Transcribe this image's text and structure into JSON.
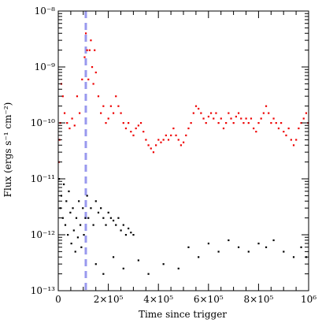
{
  "chart_data": {
    "type": "scatter",
    "title": "",
    "xlabel": "Time since trigger",
    "ylabel": "Flux (ergs s⁻¹ cm⁻²)",
    "xlim": [
      0,
      1000000
    ],
    "ylim": [
      1e-13,
      1e-08
    ],
    "yscale": "log",
    "grid": false,
    "legend": "none",
    "x_ticks": [
      {
        "value": 0,
        "label": "0"
      },
      {
        "value": 200000,
        "label": "2×10⁵"
      },
      {
        "value": 400000,
        "label": "4×10⁵"
      },
      {
        "value": 600000,
        "label": "6×10⁵"
      },
      {
        "value": 800000,
        "label": "8×10⁵"
      },
      {
        "value": 1000000,
        "label": "10⁶"
      }
    ],
    "y_ticks": [
      {
        "value": 1e-13,
        "label": "10⁻¹³"
      },
      {
        "value": 1e-12,
        "label": "10⁻¹²"
      },
      {
        "value": 1e-11,
        "label": "10⁻¹¹"
      },
      {
        "value": 1e-10,
        "label": "10⁻¹⁰"
      },
      {
        "value": 1e-09,
        "label": "10⁻⁹"
      },
      {
        "value": 1e-08,
        "label": "10⁻⁸"
      }
    ],
    "vertical_lines": [
      {
        "x": 110000,
        "style": "dashed",
        "color": "#9999ee"
      }
    ],
    "series": [
      {
        "color": "#ee0000",
        "points": [
          [
            2000,
            2e-11
          ],
          [
            5000,
            5e-11
          ],
          [
            8000,
            1e-10
          ],
          [
            12000,
            5e-10
          ],
          [
            18000,
            3e-10
          ],
          [
            25000,
            1.5e-10
          ],
          [
            35000,
            1e-10
          ],
          [
            45000,
            8e-11
          ],
          [
            55000,
            1.2e-10
          ],
          [
            65000,
            9e-11
          ],
          [
            75000,
            3e-10
          ],
          [
            85000,
            1.5e-10
          ],
          [
            95000,
            6e-10
          ],
          [
            105000,
            1.5e-09
          ],
          [
            110000,
            4e-09
          ],
          [
            115000,
            2e-09
          ],
          [
            120000,
            6e-10
          ],
          [
            125000,
            2e-09
          ],
          [
            130000,
            3e-09
          ],
          [
            135000,
            1e-09
          ],
          [
            140000,
            5e-10
          ],
          [
            145000,
            2e-09
          ],
          [
            150000,
            8e-10
          ],
          [
            160000,
            3e-10
          ],
          [
            170000,
            1.5e-10
          ],
          [
            180000,
            2e-10
          ],
          [
            190000,
            1e-10
          ],
          [
            200000,
            1.2e-10
          ],
          [
            210000,
            2e-10
          ],
          [
            220000,
            1.5e-10
          ],
          [
            230000,
            3e-10
          ],
          [
            240000,
            2e-10
          ],
          [
            250000,
            1.5e-10
          ],
          [
            260000,
            1e-10
          ],
          [
            270000,
            8e-11
          ],
          [
            280000,
            1e-10
          ],
          [
            290000,
            7e-11
          ],
          [
            300000,
            6e-11
          ],
          [
            310000,
            8e-11
          ],
          [
            320000,
            9e-11
          ],
          [
            330000,
            1e-10
          ],
          [
            340000,
            7e-11
          ],
          [
            350000,
            5e-11
          ],
          [
            360000,
            4e-11
          ],
          [
            370000,
            3.5e-11
          ],
          [
            380000,
            3e-11
          ],
          [
            390000,
            4e-11
          ],
          [
            400000,
            5e-11
          ],
          [
            410000,
            4.5e-11
          ],
          [
            420000,
            5e-11
          ],
          [
            430000,
            6e-11
          ],
          [
            440000,
            5e-11
          ],
          [
            450000,
            6e-11
          ],
          [
            460000,
            8e-11
          ],
          [
            470000,
            6e-11
          ],
          [
            480000,
            5e-11
          ],
          [
            490000,
            4e-11
          ],
          [
            500000,
            4.5e-11
          ],
          [
            510000,
            6e-11
          ],
          [
            520000,
            8e-11
          ],
          [
            530000,
            1e-10
          ],
          [
            540000,
            1.5e-10
          ],
          [
            550000,
            2e-10
          ],
          [
            560000,
            1.8e-10
          ],
          [
            570000,
            1.5e-10
          ],
          [
            580000,
            1.2e-10
          ],
          [
            590000,
            1e-10
          ],
          [
            600000,
            1.3e-10
          ],
          [
            610000,
            1.5e-10
          ],
          [
            620000,
            1.2e-10
          ],
          [
            630000,
            1.5e-10
          ],
          [
            640000,
            1e-10
          ],
          [
            650000,
            1.2e-10
          ],
          [
            660000,
            8e-11
          ],
          [
            670000,
            1e-10
          ],
          [
            680000,
            1.5e-10
          ],
          [
            690000,
            1.2e-10
          ],
          [
            700000,
            1e-10
          ],
          [
            710000,
            1.3e-10
          ],
          [
            720000,
            1.5e-10
          ],
          [
            730000,
            1.2e-10
          ],
          [
            740000,
            1e-10
          ],
          [
            750000,
            1.2e-10
          ],
          [
            760000,
            1e-10
          ],
          [
            770000,
            1.2e-10
          ],
          [
            780000,
            8e-11
          ],
          [
            790000,
            7e-11
          ],
          [
            800000,
            1e-10
          ],
          [
            810000,
            1.2e-10
          ],
          [
            820000,
            1.5e-10
          ],
          [
            830000,
            2e-10
          ],
          [
            840000,
            1.5e-10
          ],
          [
            850000,
            1e-10
          ],
          [
            860000,
            1.2e-10
          ],
          [
            870000,
            1e-10
          ],
          [
            880000,
            8e-11
          ],
          [
            890000,
            1e-10
          ],
          [
            900000,
            7e-11
          ],
          [
            910000,
            6e-11
          ],
          [
            920000,
            8e-11
          ],
          [
            930000,
            5e-11
          ],
          [
            940000,
            4e-11
          ],
          [
            950000,
            5e-11
          ],
          [
            960000,
            8e-11
          ],
          [
            970000,
            1e-10
          ],
          [
            980000,
            1.2e-10
          ],
          [
            990000,
            1.5e-10
          ],
          [
            998000,
            1e-10
          ]
        ]
      },
      {
        "color": "#000000",
        "points": [
          [
            3000,
            1e-11
          ],
          [
            8000,
            3e-12
          ],
          [
            12000,
            5e-12
          ],
          [
            18000,
            2e-12
          ],
          [
            22000,
            8e-12
          ],
          [
            28000,
            1.5e-12
          ],
          [
            32000,
            4e-12
          ],
          [
            38000,
            1e-12
          ],
          [
            42000,
            6e-12
          ],
          [
            48000,
            2.5e-12
          ],
          [
            52000,
            7e-13
          ],
          [
            58000,
            3e-12
          ],
          [
            62000,
            1.2e-12
          ],
          [
            68000,
            5e-13
          ],
          [
            72000,
            2e-12
          ],
          [
            78000,
            9e-13
          ],
          [
            82000,
            4e-12
          ],
          [
            88000,
            1.5e-12
          ],
          [
            92000,
            6e-13
          ],
          [
            98000,
            3e-12
          ],
          [
            102000,
            1e-12
          ],
          [
            108000,
            2e-12
          ],
          [
            115000,
            5e-12
          ],
          [
            120000,
            2e-12
          ],
          [
            130000,
            3e-12
          ],
          [
            140000,
            1.5e-12
          ],
          [
            150000,
            4e-12
          ],
          [
            160000,
            2.5e-12
          ],
          [
            170000,
            3e-12
          ],
          [
            180000,
            2e-12
          ],
          [
            190000,
            1.5e-12
          ],
          [
            200000,
            2.5e-12
          ],
          [
            210000,
            2e-12
          ],
          [
            220000,
            1.8e-12
          ],
          [
            230000,
            1.5e-12
          ],
          [
            240000,
            2e-12
          ],
          [
            250000,
            1.2e-12
          ],
          [
            260000,
            1.5e-12
          ],
          [
            270000,
            1e-12
          ],
          [
            280000,
            1.3e-12
          ],
          [
            290000,
            1.1e-12
          ],
          [
            300000,
            1e-12
          ],
          [
            150000,
            3e-13
          ],
          [
            180000,
            2e-13
          ],
          [
            220000,
            4e-13
          ],
          [
            260000,
            2.5e-13
          ],
          [
            320000,
            3.5e-13
          ],
          [
            360000,
            2e-13
          ],
          [
            420000,
            3e-13
          ],
          [
            480000,
            2.5e-13
          ],
          [
            520000,
            6e-13
          ],
          [
            560000,
            4e-13
          ],
          [
            600000,
            7e-13
          ],
          [
            640000,
            5e-13
          ],
          [
            680000,
            8e-13
          ],
          [
            720000,
            6e-13
          ],
          [
            760000,
            5e-13
          ],
          [
            800000,
            7e-13
          ],
          [
            830000,
            6e-13
          ],
          [
            860000,
            8e-13
          ],
          [
            900000,
            5e-13
          ],
          [
            940000,
            4e-13
          ],
          [
            970000,
            6e-13
          ],
          [
            990000,
            4e-13
          ]
        ]
      }
    ]
  }
}
